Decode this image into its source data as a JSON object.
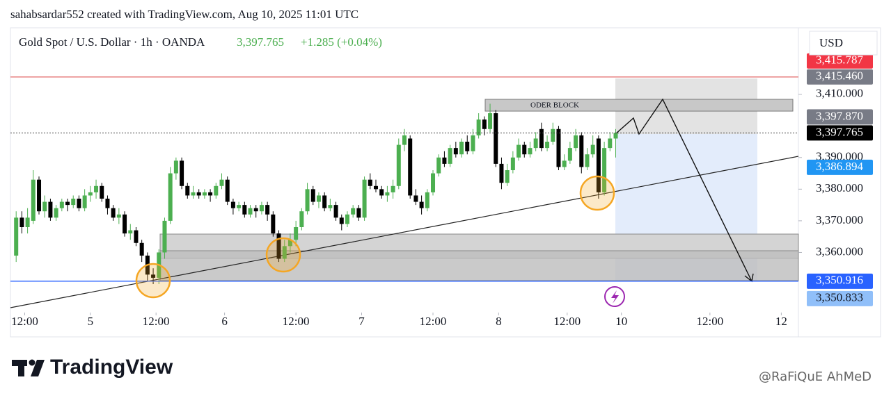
{
  "header": {
    "credit": "sahabsardar552 created with TradingView.com, Aug 10, 2025 11:01 UTC",
    "symbol": "Gold Spot / U.S. Dollar · 1h · OANDA",
    "last": "3,397.765",
    "change": "+1.285 (+0.04%)",
    "currency": "USD"
  },
  "chart_data": {
    "type": "candlestick",
    "up_color": "#4caf50",
    "down_color": "#000000",
    "xlim": [
      0,
      138
    ],
    "ylim": [
      3341,
      3431
    ],
    "xticks": [
      {
        "value": 2.5,
        "label": "12:00"
      },
      {
        "value": 14,
        "label": "5"
      },
      {
        "value": 25.5,
        "label": "12:00"
      },
      {
        "value": 37.5,
        "label": "6"
      },
      {
        "value": 50,
        "label": "12:00"
      },
      {
        "value": 61.5,
        "label": "7"
      },
      {
        "value": 74,
        "label": "12:00"
      },
      {
        "value": 85.5,
        "label": "8"
      },
      {
        "value": 97.5,
        "label": "12:00"
      },
      {
        "value": 107,
        "label": "10"
      },
      {
        "value": 122.5,
        "label": "12:00"
      },
      {
        "value": 135,
        "label": "12"
      }
    ],
    "yticks": [
      {
        "value": 3360,
        "label": "3,360.000"
      },
      {
        "value": 3370,
        "label": "3,370.000"
      },
      {
        "value": 3380,
        "label": "3,380.000"
      },
      {
        "value": 3390,
        "label": "3,390.000"
      },
      {
        "value": 3410,
        "label": "3,410.000"
      }
    ],
    "x": [
      1,
      2,
      3,
      4,
      5,
      6,
      7,
      8,
      9,
      10,
      11,
      12,
      13,
      14,
      15,
      16,
      17,
      18,
      19,
      20,
      21,
      22,
      23,
      24,
      25,
      26,
      27,
      28,
      29,
      30,
      31,
      32,
      33,
      34,
      35,
      36,
      37,
      38,
      39,
      40,
      41,
      42,
      43,
      44,
      45,
      46,
      47,
      48,
      49,
      50,
      51,
      52,
      53,
      54,
      55,
      56,
      57,
      58,
      59,
      60,
      61,
      62,
      63,
      64,
      65,
      66,
      67,
      68,
      69,
      70,
      71,
      72,
      73,
      74,
      75,
      76,
      77,
      78,
      79,
      80,
      81,
      82,
      83,
      84,
      85,
      86,
      87,
      88,
      89,
      90,
      91,
      92,
      93,
      94,
      95,
      96,
      97,
      98,
      99,
      100,
      101,
      102,
      103,
      104,
      105,
      106
    ],
    "open": [
      3359,
      3371,
      3368,
      3370,
      3383,
      3373,
      3376,
      3371,
      3374,
      3376,
      3375,
      3377,
      3374,
      3378,
      3379,
      3381,
      3377,
      3374,
      3371,
      3372,
      3366,
      3367,
      3363,
      3359,
      3353,
      3352,
      3360,
      3370,
      3385,
      3389,
      3381,
      3378,
      3379,
      3378,
      3379,
      3378,
      3381,
      3383,
      3376,
      3374,
      3375,
      3372,
      3374,
      3373,
      3375,
      3372,
      3366,
      3358,
      3362,
      3364,
      3368,
      3373,
      3380,
      3376,
      3378,
      3374,
      3375,
      3371,
      3369,
      3372,
      3374,
      3371,
      3383,
      3381,
      3380,
      3378,
      3379,
      3381,
      3394,
      3396,
      3378,
      3376,
      3374,
      3379,
      3385,
      3390,
      3388,
      3393,
      3391,
      3395,
      3392,
      3397,
      3402,
      3399,
      3404,
      3388,
      3382,
      3386,
      3390,
      3394,
      3391,
      3393,
      3399,
      3393,
      3395,
      3399,
      3387,
      3389,
      3393,
      3397,
      3387,
      3391,
      3396,
      3379,
      3393,
      3396
    ],
    "high": [
      3373,
      3373,
      3374,
      3386,
      3384,
      3378,
      3377,
      3375,
      3377,
      3377,
      3378,
      3378,
      3380,
      3381,
      3383,
      3382,
      3378,
      3375,
      3374,
      3373,
      3369,
      3368,
      3364,
      3360,
      3355,
      3361,
      3371,
      3387,
      3390,
      3390,
      3382,
      3381,
      3380,
      3380,
      3380,
      3382,
      3385,
      3384,
      3377,
      3376,
      3376,
      3375,
      3375,
      3376,
      3376,
      3373,
      3367,
      3364,
      3366,
      3370,
      3374,
      3382,
      3381,
      3379,
      3379,
      3377,
      3376,
      3372,
      3373,
      3375,
      3375,
      3384,
      3385,
      3383,
      3381,
      3381,
      3383,
      3396,
      3399,
      3397,
      3380,
      3378,
      3380,
      3386,
      3391,
      3392,
      3394,
      3395,
      3396,
      3397,
      3399,
      3404,
      3403,
      3407,
      3405,
      3390,
      3388,
      3392,
      3396,
      3395,
      3395,
      3398,
      3401,
      3397,
      3401,
      3400,
      3391,
      3395,
      3399,
      3398,
      3393,
      3397,
      3397,
      3395,
      3398,
      3399
    ],
    "low": [
      3357,
      3366,
      3366,
      3369,
      3372,
      3371,
      3370,
      3370,
      3373,
      3373,
      3374,
      3373,
      3373,
      3376,
      3377,
      3376,
      3372,
      3370,
      3369,
      3365,
      3364,
      3362,
      3357,
      3351,
      3350,
      3350,
      3358,
      3369,
      3383,
      3380,
      3377,
      3377,
      3377,
      3377,
      3376,
      3377,
      3380,
      3375,
      3372,
      3373,
      3371,
      3371,
      3371,
      3372,
      3370,
      3365,
      3357,
      3357,
      3360,
      3362,
      3367,
      3372,
      3375,
      3374,
      3373,
      3373,
      3370,
      3367,
      3368,
      3371,
      3370,
      3370,
      3380,
      3379,
      3377,
      3376,
      3377,
      3380,
      3392,
      3377,
      3375,
      3372,
      3373,
      3378,
      3384,
      3387,
      3387,
      3390,
      3390,
      3391,
      3391,
      3396,
      3397,
      3398,
      3387,
      3380,
      3381,
      3385,
      3389,
      3390,
      3390,
      3392,
      3392,
      3392,
      3394,
      3386,
      3386,
      3388,
      3392,
      3385,
      3386,
      3390,
      3377,
      3378,
      3392,
      3390
    ],
    "close": [
      3371,
      3368,
      3371,
      3383,
      3373,
      3376,
      3371,
      3374,
      3376,
      3375,
      3377,
      3374,
      3378,
      3379,
      3381,
      3377,
      3374,
      3371,
      3372,
      3366,
      3367,
      3363,
      3359,
      3353,
      3352,
      3360,
      3370,
      3385,
      3389,
      3381,
      3378,
      3379,
      3378,
      3379,
      3378,
      3381,
      3383,
      3376,
      3374,
      3375,
      3372,
      3374,
      3373,
      3375,
      3372,
      3366,
      3358,
      3362,
      3364,
      3368,
      3373,
      3380,
      3376,
      3378,
      3374,
      3375,
      3371,
      3369,
      3372,
      3374,
      3371,
      3383,
      3381,
      3380,
      3378,
      3379,
      3381,
      3394,
      3397,
      3378,
      3376,
      3374,
      3379,
      3385,
      3390,
      3388,
      3393,
      3391,
      3395,
      3392,
      3397,
      3402,
      3399,
      3404,
      3388,
      3382,
      3386,
      3390,
      3394,
      3391,
      3393,
      3396,
      3393,
      3395,
      3399,
      3387,
      3389,
      3393,
      3397,
      3387,
      3391,
      3394,
      3379,
      3393,
      3396,
      3397.765
    ],
    "price_tags": [
      {
        "value": 3415.46,
        "label": "3,415.460",
        "color": "#787b86",
        "text_color": "#ffffff",
        "line": "solid",
        "line_color": "#e57373"
      },
      {
        "value": 3415.787,
        "label": "3,415.787",
        "color": "#f23645",
        "text_color": "#ffffff"
      },
      {
        "value": 3397.765,
        "label": "3,397.765",
        "color": "#000000",
        "text_color": "#ffffff",
        "line": "dotted",
        "line_color": "#444444"
      },
      {
        "value": 3397.87,
        "label": "3,397.870",
        "color": "#787b86",
        "text_color": "#ffffff"
      },
      {
        "value": 3386.894,
        "label": "3,386.894",
        "color": "#2196f3",
        "text_color": "#ffffff"
      },
      {
        "value": 3350.916,
        "label": "3,350.916",
        "color": "#2962ff",
        "text_color": "#ffffff",
        "line": "solid",
        "line_color": "#2962ff"
      },
      {
        "value": 3350.833,
        "label": "3,350.833",
        "color": "#90bff9",
        "text_color": "#131722"
      }
    ],
    "annotation": "ODER BLOCK"
  },
  "footer": {
    "logo": "TradingView",
    "watermark": "@RaFiQuE AhMeD"
  }
}
